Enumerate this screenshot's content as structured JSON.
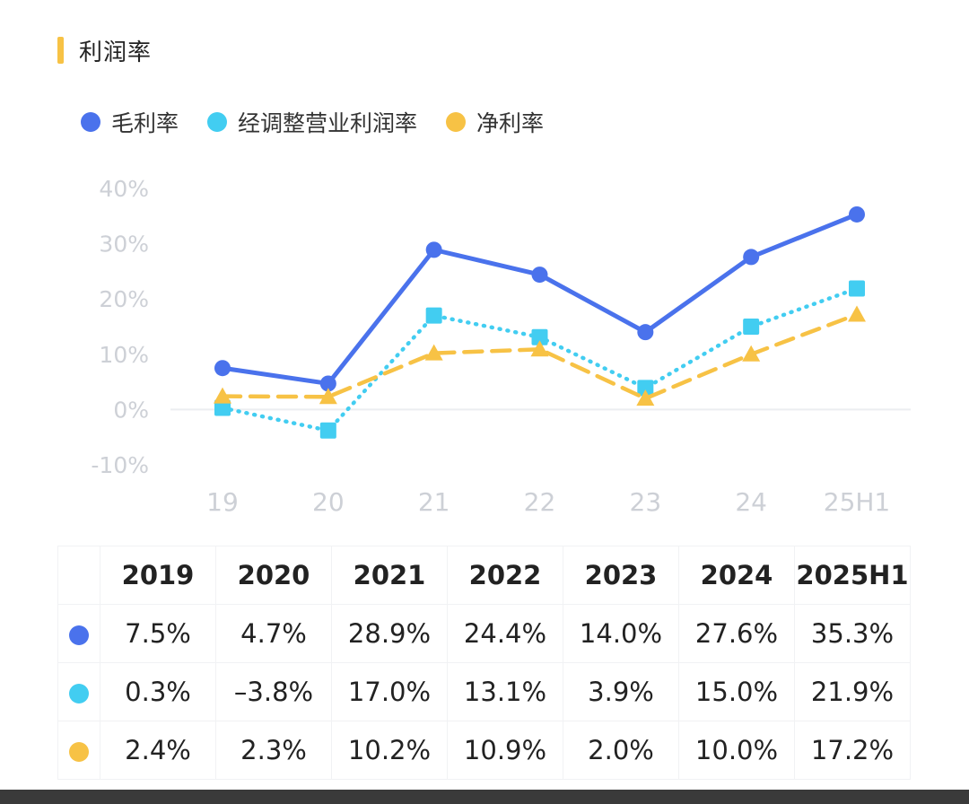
{
  "section": {
    "title": "利润率",
    "accent_color": "#f7c245"
  },
  "chart_data": {
    "type": "line",
    "categories": [
      "19",
      "20",
      "21",
      "22",
      "23",
      "24",
      "25H1"
    ],
    "y_ticks": [
      "40%",
      "30%",
      "20%",
      "10%",
      "0%",
      "-10%"
    ],
    "ylim": [
      -10,
      40
    ],
    "grid": false,
    "legend_position": "top-left",
    "series": [
      {
        "name": "毛利率",
        "color": "#4a72ec",
        "line_style": "solid",
        "marker": "circle",
        "values": [
          7.5,
          4.7,
          28.9,
          24.4,
          14.0,
          27.6,
          35.3
        ]
      },
      {
        "name": "经调整营业利润率",
        "color": "#42cdf1",
        "line_style": "dotted",
        "marker": "square",
        "values": [
          0.3,
          -3.8,
          17.0,
          13.1,
          3.9,
          15.0,
          21.9
        ]
      },
      {
        "name": "净利率",
        "color": "#f7c245",
        "line_style": "dashed",
        "marker": "triangle",
        "values": [
          2.4,
          2.3,
          10.2,
          10.9,
          2.0,
          10.0,
          17.2
        ]
      }
    ]
  },
  "table": {
    "headers": [
      "2019",
      "2020",
      "2021",
      "2022",
      "2023",
      "2024",
      "2025H1"
    ],
    "rows": [
      {
        "color": "#4a72ec",
        "cells": [
          "7.5%",
          "4.7%",
          "28.9%",
          "24.4%",
          "14.0%",
          "27.6%",
          "35.3%"
        ]
      },
      {
        "color": "#42cdf1",
        "cells": [
          "0.3%",
          "–3.8%",
          "17.0%",
          "13.1%",
          "3.9%",
          "15.0%",
          "21.9%"
        ]
      },
      {
        "color": "#f7c245",
        "cells": [
          "2.4%",
          "2.3%",
          "10.2%",
          "10.9%",
          "2.0%",
          "10.0%",
          "17.2%"
        ]
      }
    ]
  }
}
